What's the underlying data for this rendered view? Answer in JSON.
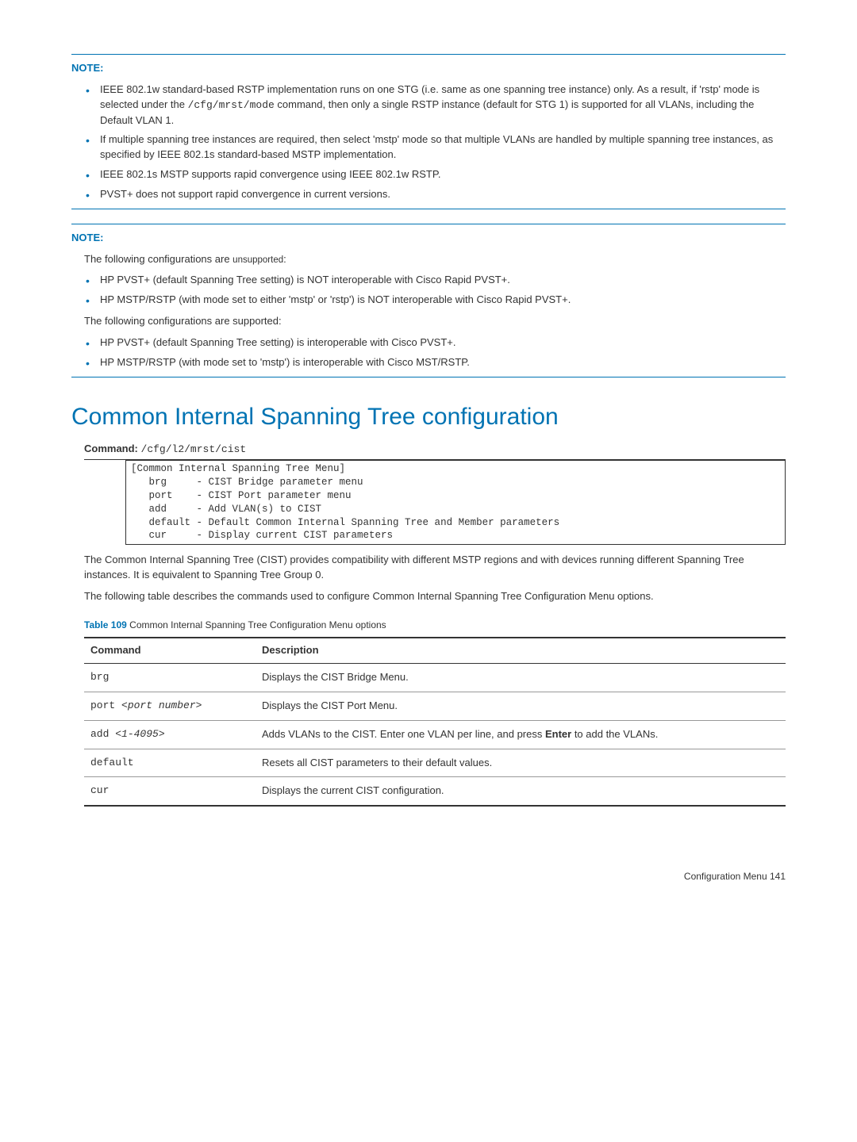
{
  "note1": {
    "label": "NOTE:",
    "items": [
      "IEEE 802.1w standard-based RSTP implementation runs on one STG (i.e. same as one spanning tree instance) only. As a result, if 'rstp' mode is selected under the <span class='mono'>/cfg/mrst/mode</span> command, then only a single RSTP instance (default for STG 1) is supported for all VLANs, including the Default VLAN 1.",
      "If multiple spanning tree instances are required, then select 'mstp' mode so that multiple VLANs are handled by multiple spanning tree instances, as specified by IEEE 802.1s standard-based MSTP implementation.",
      "IEEE 802.1s MSTP supports rapid convergence using IEEE 802.1w RSTP.",
      "PVST+ does not support rapid convergence in current versions."
    ]
  },
  "note2": {
    "label": "NOTE:",
    "intro1_pre": "The following configurations are ",
    "intro1_unsup": "unsupported",
    "intro1_post": ":",
    "unsupported": [
      "HP PVST+ (default Spanning Tree setting) is NOT interoperable with Cisco Rapid PVST+.",
      "HP MSTP/RSTP (with mode set to either 'mstp' or 'rstp') is NOT interoperable with Cisco Rapid PVST+."
    ],
    "intro2": "The following configurations are supported:",
    "supported": [
      "HP PVST+ (default Spanning Tree setting) is interoperable with Cisco PVST+.",
      "HP MSTP/RSTP (with mode set to 'mstp') is interoperable with Cisco MST/RSTP."
    ]
  },
  "section": {
    "title": "Common Internal Spanning Tree configuration",
    "command_label": "Command:",
    "command_path": "/cfg/l2/mrst/cist",
    "code": "[Common Internal Spanning Tree Menu]\n   brg     - CIST Bridge parameter menu\n   port    - CIST Port parameter menu\n   add     - Add VLAN(s) to CIST\n   default - Default Common Internal Spanning Tree and Member parameters\n   cur     - Display current CIST parameters",
    "para1": "The Common Internal Spanning Tree (CIST) provides compatibility with different MSTP regions and with devices running different Spanning Tree instances. It is equivalent to Spanning Tree Group 0.",
    "para2": "The following table describes the commands used to configure Common Internal Spanning Tree Configuration Menu options."
  },
  "table": {
    "caption_num": "Table 109",
    "caption_rest": "  Common Internal Spanning Tree Configuration Menu options",
    "headers": [
      "Command",
      "Description"
    ],
    "rows": [
      {
        "cmd": "brg",
        "desc": "Displays the CIST Bridge Menu."
      },
      {
        "cmd": "port <span class='italic'>&lt;port number&gt;</span>",
        "desc": "Displays the CIST Port Menu."
      },
      {
        "cmd": "add <span class='italic'>&lt;1-4095&gt;</span>",
        "desc": "Adds VLANs to the CIST. Enter one VLAN per line, and press <b>Enter</b> to add the VLANs."
      },
      {
        "cmd": "default",
        "desc": "Resets all CIST parameters to their default values."
      },
      {
        "cmd": "cur",
        "desc": "Displays the current CIST configuration."
      }
    ]
  },
  "footer": {
    "text": "Configuration Menu   141"
  }
}
